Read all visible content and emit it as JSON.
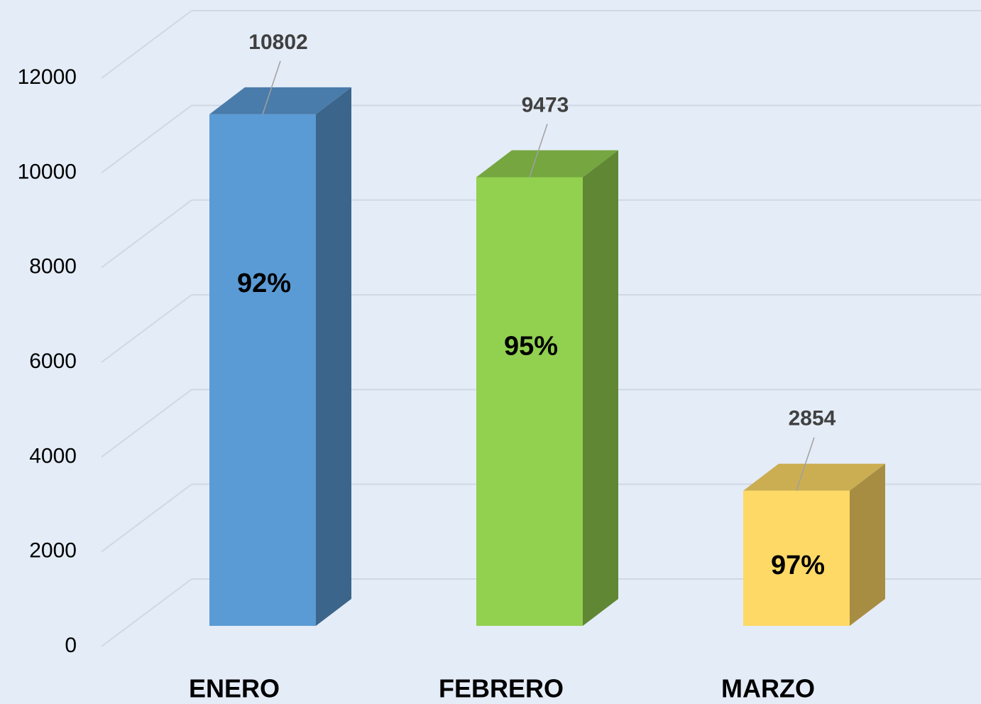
{
  "chart_data": {
    "type": "bar3d",
    "categories": [
      "ENERO",
      "FEBRERO",
      "MARZO"
    ],
    "values": [
      10802,
      9473,
      2854
    ],
    "colors": [
      "#5b9bd5",
      "#92d050",
      "#ffd966"
    ],
    "bar_labels": [
      "92%",
      "95%",
      "97%"
    ],
    "ylim": [
      0,
      12000
    ],
    "yticks": [
      0,
      2000,
      4000,
      6000,
      8000,
      10000,
      12000
    ],
    "grid": true
  }
}
